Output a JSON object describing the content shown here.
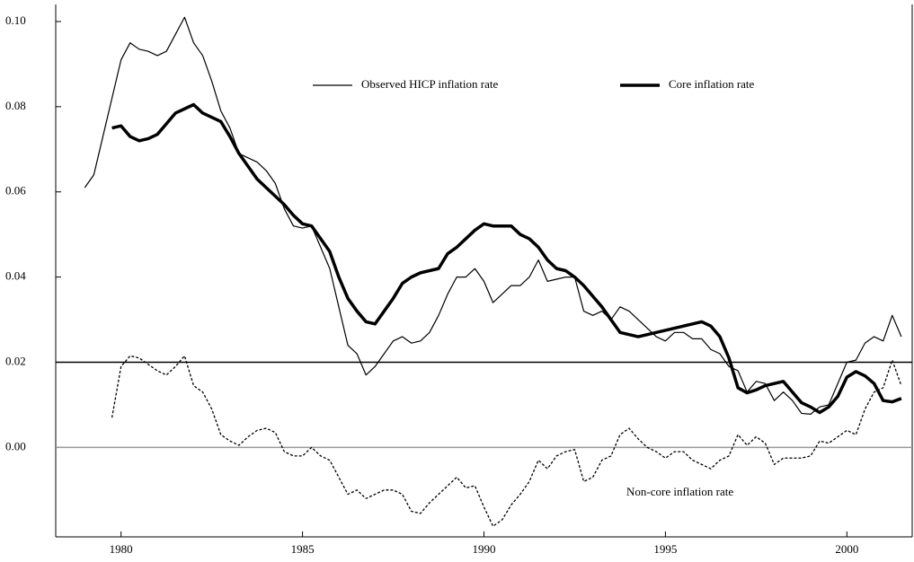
{
  "chart_data": {
    "type": "line",
    "x": [
      1979.0,
      1979.25,
      1979.5,
      1979.75,
      1980.0,
      1980.25,
      1980.5,
      1980.75,
      1981.0,
      1981.25,
      1981.5,
      1981.75,
      1982.0,
      1982.25,
      1982.5,
      1982.75,
      1983.0,
      1983.25,
      1983.5,
      1983.75,
      1984.0,
      1984.25,
      1984.5,
      1984.75,
      1985.0,
      1985.25,
      1985.5,
      1985.75,
      1986.0,
      1986.25,
      1986.5,
      1986.75,
      1987.0,
      1987.25,
      1987.5,
      1987.75,
      1988.0,
      1988.25,
      1988.5,
      1988.75,
      1989.0,
      1989.25,
      1989.5,
      1989.75,
      1990.0,
      1990.25,
      1990.5,
      1990.75,
      1991.0,
      1991.25,
      1991.5,
      1991.75,
      1992.0,
      1992.25,
      1992.5,
      1992.75,
      1993.0,
      1993.25,
      1993.5,
      1993.75,
      1994.0,
      1994.25,
      1994.5,
      1994.75,
      1995.0,
      1995.25,
      1995.5,
      1995.75,
      1996.0,
      1996.25,
      1996.5,
      1996.75,
      1997.0,
      1997.25,
      1997.5,
      1997.75,
      1998.0,
      1998.25,
      1998.5,
      1998.75,
      1999.0,
      1999.25,
      1999.5,
      1999.75,
      2000.0,
      2000.25,
      2000.5,
      2000.75,
      2001.0,
      2001.25,
      2001.5
    ],
    "series": [
      {
        "name": "Observed HICP inflation rate",
        "color": "#000000",
        "width": 1.2,
        "dashed": false,
        "values": [
          0.061,
          0.064,
          0.073,
          0.082,
          0.091,
          0.095,
          0.0935,
          0.093,
          0.092,
          0.093,
          0.097,
          0.101,
          0.095,
          0.092,
          0.086,
          0.079,
          0.075,
          0.069,
          0.068,
          0.067,
          0.065,
          0.062,
          0.056,
          0.052,
          0.0515,
          0.052,
          0.047,
          0.042,
          0.033,
          0.024,
          0.022,
          0.017,
          0.019,
          0.022,
          0.025,
          0.026,
          0.0245,
          0.025,
          0.027,
          0.031,
          0.036,
          0.04,
          0.04,
          0.042,
          0.039,
          0.034,
          0.036,
          0.038,
          0.038,
          0.04,
          0.044,
          0.039,
          0.0395,
          0.04,
          0.04,
          0.032,
          0.031,
          0.032,
          0.03,
          0.033,
          0.032,
          0.03,
          0.028,
          0.026,
          0.025,
          0.027,
          0.027,
          0.0255,
          0.0255,
          0.023,
          0.022,
          0.019,
          0.018,
          0.013,
          0.0155,
          0.015,
          0.011,
          0.013,
          0.011,
          0.008,
          0.0078,
          0.0095,
          0.01,
          0.015,
          0.02,
          0.0205,
          0.0245,
          0.026,
          0.025,
          0.031,
          0.026
        ]
      },
      {
        "name": "Core inflation rate",
        "color": "#000000",
        "width": 3.5,
        "dashed": false,
        "values": [
          null,
          null,
          null,
          0.075,
          0.0755,
          0.073,
          0.072,
          0.0725,
          0.0735,
          0.076,
          0.0785,
          0.0795,
          0.0805,
          0.0785,
          0.0775,
          0.0765,
          0.073,
          0.069,
          0.066,
          0.063,
          0.061,
          0.059,
          0.057,
          0.0545,
          0.0525,
          0.052,
          0.049,
          0.046,
          0.04,
          0.035,
          0.032,
          0.0295,
          0.029,
          0.032,
          0.035,
          0.0385,
          0.04,
          0.041,
          0.0415,
          0.042,
          0.0455,
          0.047,
          0.049,
          0.051,
          0.0525,
          0.052,
          0.052,
          0.052,
          0.05,
          0.049,
          0.047,
          0.044,
          0.042,
          0.0415,
          0.04,
          0.038,
          0.0355,
          0.033,
          0.03,
          0.027,
          0.0265,
          0.026,
          0.0265,
          0.027,
          0.0275,
          0.028,
          0.0285,
          0.029,
          0.0295,
          0.0285,
          0.026,
          0.021,
          0.014,
          0.0128,
          0.0135,
          0.0145,
          0.015,
          0.0155,
          0.013,
          0.0105,
          0.0095,
          0.0082,
          0.0095,
          0.012,
          0.0165,
          0.0178,
          0.0168,
          0.015,
          0.011,
          0.0107,
          0.0115
        ]
      },
      {
        "name": "Non-core inflation rate",
        "color": "#000000",
        "width": 1.3,
        "dashed": true,
        "values": [
          null,
          null,
          null,
          0.007,
          0.019,
          0.0215,
          0.021,
          0.0195,
          0.018,
          0.017,
          0.019,
          0.0215,
          0.0145,
          0.013,
          0.009,
          0.003,
          0.0015,
          0.0005,
          0.0025,
          0.004,
          0.0045,
          0.0035,
          -0.001,
          -0.002,
          -0.002,
          0.0,
          -0.002,
          -0.003,
          -0.007,
          -0.011,
          -0.01,
          -0.012,
          -0.011,
          -0.01,
          -0.01,
          -0.011,
          -0.015,
          -0.0155,
          -0.013,
          -0.011,
          -0.009,
          -0.007,
          -0.0095,
          -0.009,
          -0.014,
          -0.0185,
          -0.017,
          -0.0135,
          -0.011,
          -0.008,
          -0.003,
          -0.005,
          -0.002,
          -0.001,
          -0.0005,
          -0.008,
          -0.007,
          -0.003,
          -0.002,
          0.003,
          0.0045,
          0.002,
          0.0,
          -0.001,
          -0.0025,
          -0.001,
          -0.001,
          -0.003,
          -0.004,
          -0.005,
          -0.003,
          -0.002,
          0.003,
          0.0005,
          0.0025,
          0.001,
          -0.004,
          -0.0025,
          -0.0025,
          -0.0025,
          -0.002,
          0.0015,
          0.001,
          0.0025,
          0.004,
          0.003,
          0.009,
          0.013,
          0.014,
          0.0205,
          0.0145
        ]
      }
    ],
    "reference_lines": [
      {
        "value": 0.02,
        "color": "#000000"
      },
      {
        "value": 0,
        "color": "#999999"
      }
    ],
    "xlim": [
      1978.2,
      2001.8
    ],
    "ylim": [
      -0.021,
      0.104
    ],
    "xticks": [
      1980,
      1985,
      1990,
      1995,
      2000
    ],
    "yticks": [
      {
        "value": 0,
        "label": "0.00"
      },
      {
        "value": 0.02,
        "label": "0.02"
      },
      {
        "value": 0.04,
        "label": "0.04"
      },
      {
        "value": 0.06,
        "label": "0.06"
      },
      {
        "value": 0.08,
        "label": "0.08"
      },
      {
        "value": 0.1,
        "label": "0.10"
      }
    ]
  }
}
